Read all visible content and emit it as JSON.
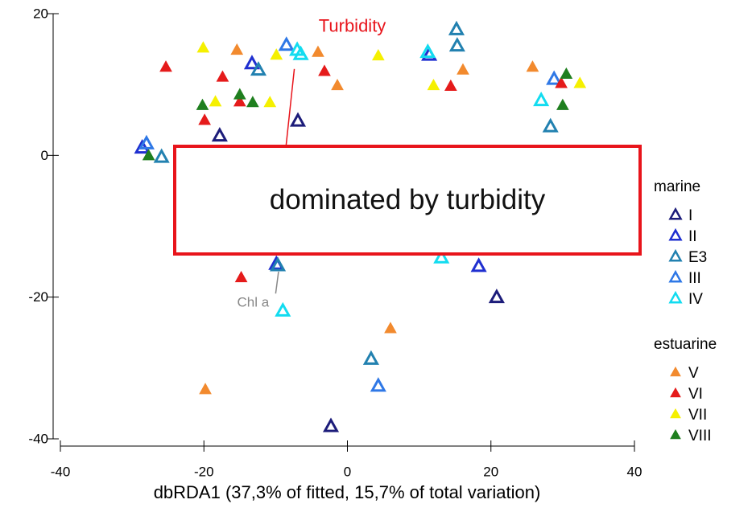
{
  "chart_data": {
    "type": "scatter",
    "xlabel": "dbRDA1 (37,3% of fitted, 15,7% of total variation)",
    "xlim": [
      -40,
      40
    ],
    "xticks": [
      -40,
      -20,
      0,
      20,
      40
    ],
    "ylim": [
      -40,
      20
    ],
    "yticks": [
      -40,
      -20,
      0,
      20
    ],
    "groups": [
      {
        "name": "marine",
        "filled": false,
        "series": [
          {
            "name": "I",
            "color": "#1c1c7a",
            "x": [
              -6.9,
              -17.8,
              20.8,
              -2.3
            ],
            "y": [
              4.9,
              2.8,
              -20,
              -38.2
            ]
          },
          {
            "name": "II",
            "color": "#1f2fd0",
            "x": [
              -9.9,
              18.3,
              -13.3,
              11.4,
              -28.6
            ],
            "y": [
              -15.3,
              -15.6,
              13,
              14.2,
              1.1
            ]
          },
          {
            "name": "E3",
            "color": "#2281b0",
            "x": [
              15.2,
              15.3,
              -12.4,
              -25.9,
              3.3,
              -9.7,
              28.3
            ],
            "y": [
              17.8,
              15.5,
              12.1,
              -0.2,
              -28.7,
              -15.5,
              4.1
            ]
          },
          {
            "name": "III",
            "color": "#2f78e6",
            "x": [
              -28,
              4.3,
              28.8,
              -8.5
            ],
            "y": [
              1.7,
              -32.5,
              10.8,
              15.6
            ]
          },
          {
            "name": "IV",
            "color": "#12dcf0",
            "x": [
              -9,
              11.2,
              27,
              -6.5,
              -7,
              13.1
            ],
            "y": [
              -21.9,
              14.6,
              7.8,
              14.3,
              14.9,
              -14.4
            ]
          }
        ]
      },
      {
        "name": "estuarine",
        "filled": true,
        "series": [
          {
            "name": "V",
            "color": "#f28a2e",
            "x": [
              -15.4,
              -4.1,
              -1.4,
              16.1,
              25.8,
              6,
              -19.8
            ],
            "y": [
              14.9,
              14.6,
              9.9,
              12.1,
              12.5,
              -24.4,
              -33
            ]
          },
          {
            "name": "VI",
            "color": "#e51b1b",
            "x": [
              -25.3,
              -17.4,
              -19.9,
              -15,
              -3.2,
              14.4,
              29.8,
              -14.8
            ],
            "y": [
              12.5,
              11.1,
              5,
              7.6,
              11.9,
              9.8,
              10.2,
              -17.2
            ]
          },
          {
            "name": "VII",
            "color": "#f5f000",
            "x": [
              -20.1,
              -18.4,
              -10.8,
              -9.9,
              4.3,
              12,
              32.4
            ],
            "y": [
              15.2,
              7.6,
              7.5,
              14.2,
              14.1,
              9.9,
              10.2
            ]
          },
          {
            "name": "VIII",
            "color": "#1f7f1f",
            "x": [
              -20.2,
              -15,
              -13.2,
              -27.7,
              30.5,
              30
            ],
            "y": [
              7.1,
              8.6,
              7.5,
              0,
              11.5,
              7.1
            ]
          }
        ]
      }
    ],
    "vectors": [
      {
        "text": "Turbidity",
        "color": "#e8141b",
        "x": [
          -8.6,
          -7.4
        ],
        "y": [
          0.9,
          12.2
        ]
      },
      {
        "text": "Chl a",
        "color": "#888888",
        "x": [
          -9.6,
          -10
        ],
        "y": [
          -16.4,
          -19.5
        ]
      }
    ],
    "overlay_text": "dominated by turbidity"
  }
}
